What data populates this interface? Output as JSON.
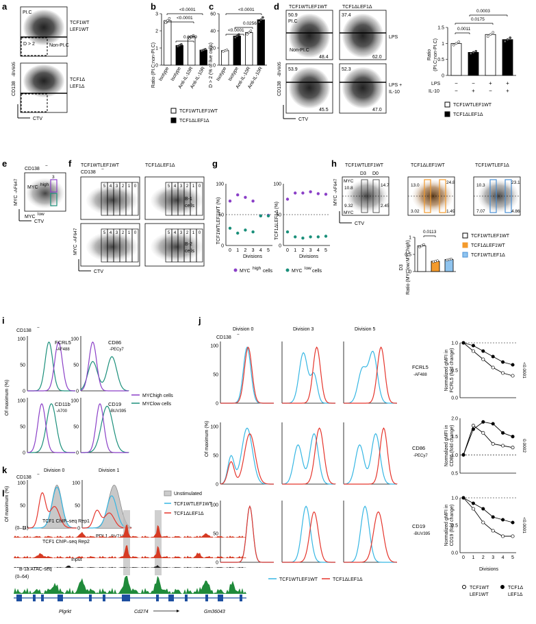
{
  "panel_letters": [
    "a",
    "b",
    "c",
    "d",
    "e",
    "f",
    "g",
    "h",
    "i",
    "j",
    "k",
    "l"
  ],
  "colors": {
    "wt": "#ffffff",
    "ko": "#000000",
    "myc_high": "#8a3fc7",
    "myc_low": "#1a8f7a",
    "tcf_wt": "#35b6e3",
    "tcf_ko": "#e5342b",
    "orange": "#f39a2c",
    "blue_box": "#4a8fd4",
    "chip": "#d63b24",
    "atac": "#1f8a3a",
    "gene": "#1d4fa0"
  },
  "genotypes": {
    "wt": "TCF1WTLEF1WT",
    "ko": "TCF1ΔLEF1Δ",
    "tcfko_lefwt": "TCF1ΔLEF1WT",
    "tcfwt_lefko": "TCF1WTLEF1Δ",
    "wt_line1": "TCF1WT",
    "wt_line2": "LEF1WT",
    "ko_line1": "TCF1Δ",
    "ko_line2": "LEF1Δ"
  },
  "axes": {
    "ctv": "CTV",
    "cd138": "CD138",
    "cd138_fluor": "-BV605",
    "myc": "MYC",
    "myc_fluor": "-AF647",
    "of_max": "Of maximum (%)",
    "divisions": "Divisions",
    "pdl1": "PDL1",
    "pdl1_fluor": "-BV711"
  },
  "panel_a": {
    "gate_pl": "PI.C",
    "gate_d2": "D > 2",
    "gate_nonpl": "Non-PI.C"
  },
  "panel_b": {
    "ylabel": "Ratio (PI.C:non-PI.C)",
    "categories": [
      "Isotype",
      "Isotype",
      "Anti-IL-10R",
      "Anti-IL-10R"
    ],
    "pvals": [
      "<0.0001",
      "<0.0001",
      "0.0009"
    ]
  },
  "panel_c": {
    "ylabel": "D > 2 (% of live cells)",
    "categories": [
      "Isotype",
      "Isotype",
      "Anti-IL-10R",
      "Anti-IL-10R"
    ],
    "pvals": [
      "<0.0001",
      "<0.0001",
      "0.0256"
    ]
  },
  "panel_d": {
    "pl": "PI.C",
    "nonpl": "Non-PI.C",
    "cond": [
      "LPS",
      "LPS +",
      "IL-10"
    ],
    "values": {
      "tl": "50.9",
      "tl_b": "48.4",
      "tr": "37.4",
      "tr_b": "62.0",
      "bl": "53.9",
      "bl_b": "45.5",
      "br": "52.3",
      "br_b": "47.0"
    },
    "ylabel1": "Ratio",
    "ylabel2": "(PI.C:non-PI.C)",
    "row_lps": "LPS",
    "row_il10": "IL-10",
    "signs": [
      "−",
      "−",
      "+",
      "+",
      "−",
      "+",
      "−",
      "+"
    ],
    "pvals": [
      "0.0011",
      "0.0175",
      "0.0003"
    ]
  },
  "panel_e": {
    "cd138neg": "CD138",
    "myc_high": "MYC",
    "myc_low": "MYC",
    "high": "high",
    "low": "low",
    "gate": "3"
  },
  "panel_f": {
    "cd138neg": "CD138",
    "row1": "B-1",
    "row1b": "cells",
    "row2": "B-2",
    "row2b": "cells",
    "gates": [
      "5",
      "4",
      "3",
      "2",
      "1",
      "0"
    ]
  },
  "panel_g": {
    "ylabel_wt": "TCF1WTLEF1WT (%)",
    "ylabel_ko": "TCF1ΔLEF1Δ (%)",
    "xticks": [
      "0",
      "1",
      "2",
      "3",
      "4",
      "5"
    ],
    "yticks": [
      "0",
      "50",
      "100"
    ],
    "legend_high": "MYC",
    "legend_high_sup": "high",
    "legend_low": "MYC",
    "legend_low_sup": "low",
    "cells": "cells"
  },
  "chart_data": [
    {
      "type": "bar",
      "panel": "b",
      "categories": [
        "Isotype",
        "Isotype",
        "Anti-IL-10R",
        "Anti-IL-10R"
      ],
      "values": [
        2.6,
        1.15,
        1.65,
        0.88
      ],
      "ylim": [
        0,
        3
      ],
      "yticks": [
        0,
        1,
        2,
        3
      ]
    },
    {
      "type": "bar",
      "panel": "c",
      "categories": [
        "Isotype",
        "Isotype",
        "Anti-IL-10R",
        "Anti-IL-10R"
      ],
      "values": [
        17,
        34,
        38,
        53
      ],
      "ylim": [
        0,
        60
      ],
      "yticks": [
        0,
        20,
        40,
        60
      ]
    },
    {
      "type": "bar",
      "panel": "d",
      "values": [
        1.0,
        0.72,
        1.28,
        1.12
      ],
      "ylim": [
        0,
        1.5
      ],
      "yticks": [
        0,
        0.5,
        1.0,
        1.5
      ]
    },
    {
      "type": "scatter",
      "panel": "g-wt",
      "x": [
        0,
        1,
        2,
        3,
        4,
        5
      ],
      "series": [
        {
          "name": "MYChigh cells",
          "values": [
            72,
            82,
            78,
            72,
            48,
            49
          ]
        },
        {
          "name": "MYClow cells",
          "values": [
            28,
            20,
            25,
            22,
            48,
            48
          ]
        }
      ],
      "ylim": [
        0,
        100
      ]
    },
    {
      "type": "scatter",
      "panel": "g-ko",
      "x": [
        0,
        1,
        2,
        3,
        4,
        5
      ],
      "series": [
        {
          "name": "MYChigh cells",
          "values": [
            75,
            85,
            85,
            87,
            84,
            83
          ]
        },
        {
          "name": "MYClow cells",
          "values": [
            22,
            14,
            12,
            14,
            14,
            15
          ]
        }
      ],
      "ylim": [
        0,
        100
      ]
    },
    {
      "type": "bar",
      "panel": "h",
      "values": [
        0.75,
        0.3,
        0.35
      ],
      "ylim": [
        0,
        1
      ],
      "yticks": [
        0,
        0.5,
        1
      ]
    },
    {
      "type": "line",
      "panel": "j-fcrl5",
      "x": [
        0,
        1,
        2,
        3,
        4,
        5
      ],
      "series": [
        {
          "name": "TCF1WTLEF1WT",
          "values": [
            1.0,
            0.85,
            0.7,
            0.55,
            0.45,
            0.4
          ]
        },
        {
          "name": "TCF1ΔLEF1Δ",
          "values": [
            1.0,
            0.95,
            0.85,
            0.75,
            0.65,
            0.6
          ]
        }
      ],
      "ylim": [
        0,
        1.0
      ],
      "yticks": [
        0,
        0.5,
        1.0
      ]
    },
    {
      "type": "line",
      "panel": "j-cd86",
      "x": [
        0,
        1,
        2,
        3,
        4,
        5
      ],
      "series": [
        {
          "name": "TCF1WTLEF1WT",
          "values": [
            1.0,
            1.8,
            1.6,
            1.3,
            1.25,
            1.2
          ]
        },
        {
          "name": "TCF1ΔLEF1Δ",
          "values": [
            1.0,
            1.7,
            1.9,
            1.85,
            1.6,
            1.5
          ]
        }
      ],
      "ylim": [
        0.5,
        2.0
      ],
      "yticks": [
        0.5,
        1.0,
        1.5,
        2.0
      ]
    },
    {
      "type": "line",
      "panel": "j-cd19",
      "x": [
        0,
        1,
        2,
        3,
        4,
        5
      ],
      "series": [
        {
          "name": "TCF1WTLEF1WT",
          "values": [
            1.0,
            0.8,
            0.55,
            0.4,
            0.3,
            0.3
          ]
        },
        {
          "name": "TCF1ΔLEF1Δ",
          "values": [
            1.0,
            0.9,
            0.8,
            0.65,
            0.6,
            0.55
          ]
        }
      ],
      "ylim": [
        0,
        1.0
      ],
      "yticks": [
        0,
        0.5,
        1.0
      ]
    }
  ],
  "panel_h": {
    "d3": "D3",
    "d0": "D0",
    "vals1": [
      "10.8",
      "14.7",
      "9.32",
      "2.45"
    ],
    "vals2": [
      "13.0",
      "24.8",
      "3.02",
      "1.49"
    ],
    "vals3": [
      "10.3",
      "23.1",
      "7.07",
      "4.86"
    ],
    "pval": "0.0113",
    "ylabel1": "D3",
    "ylabel2": "Ratio (MYClow:MYChigh)"
  },
  "panel_i": {
    "cd138neg": "CD138",
    "markers": [
      {
        "name": "FCRL5",
        "fluor": "-AF488"
      },
      {
        "name": "CD86",
        "fluor": "-PECy7"
      },
      {
        "name": "CD11b",
        "fluor": "-A700"
      },
      {
        "name": "CD19",
        "fluor": "-BUV395"
      }
    ],
    "legend_high": "MYChigh cells",
    "legend_low": "MYClow cells",
    "yticks": [
      "0",
      "50",
      "100"
    ]
  },
  "panel_j": {
    "cd138neg": "CD138",
    "divisions": [
      "Division 0",
      "Division 3",
      "Division 5"
    ],
    "markers": [
      {
        "name": "FCRL5",
        "fluor": "-AF488"
      },
      {
        "name": "CD86",
        "fluor": "-PECy7"
      },
      {
        "name": "CD19",
        "fluor": "-BUV395"
      }
    ],
    "ylabels": [
      [
        "Normalized gMFI in",
        "FCRL5 (fold change)"
      ],
      [
        "Normalized gMFI in",
        "CD86 (fold change)"
      ],
      [
        "Normalized gMFI in",
        "CD19 (fold change)"
      ]
    ],
    "pvals": [
      "<0.0001",
      "0.0002",
      "<0.0001"
    ],
    "xticks": [
      "0",
      "1",
      "2",
      "3",
      "4",
      "5"
    ]
  },
  "panel_k": {
    "cd138neg": "CD138",
    "divisions": [
      "Division 0",
      "Division 1"
    ],
    "legend": [
      "Unstimulated",
      "TCF1WTLEF1WT",
      "TCF1ΔLEF1Δ"
    ]
  },
  "panel_l": {
    "tracks": [
      "TCF1 ChIP–seq Rep1",
      "TCF1 ChIP–seq Rep2",
      "Input",
      "B-1a ATAC-seq"
    ],
    "range1": "(0–11)",
    "range2": "(0–64)",
    "genes": [
      "Plgrkt",
      "Cd274",
      "Gm36043"
    ]
  }
}
